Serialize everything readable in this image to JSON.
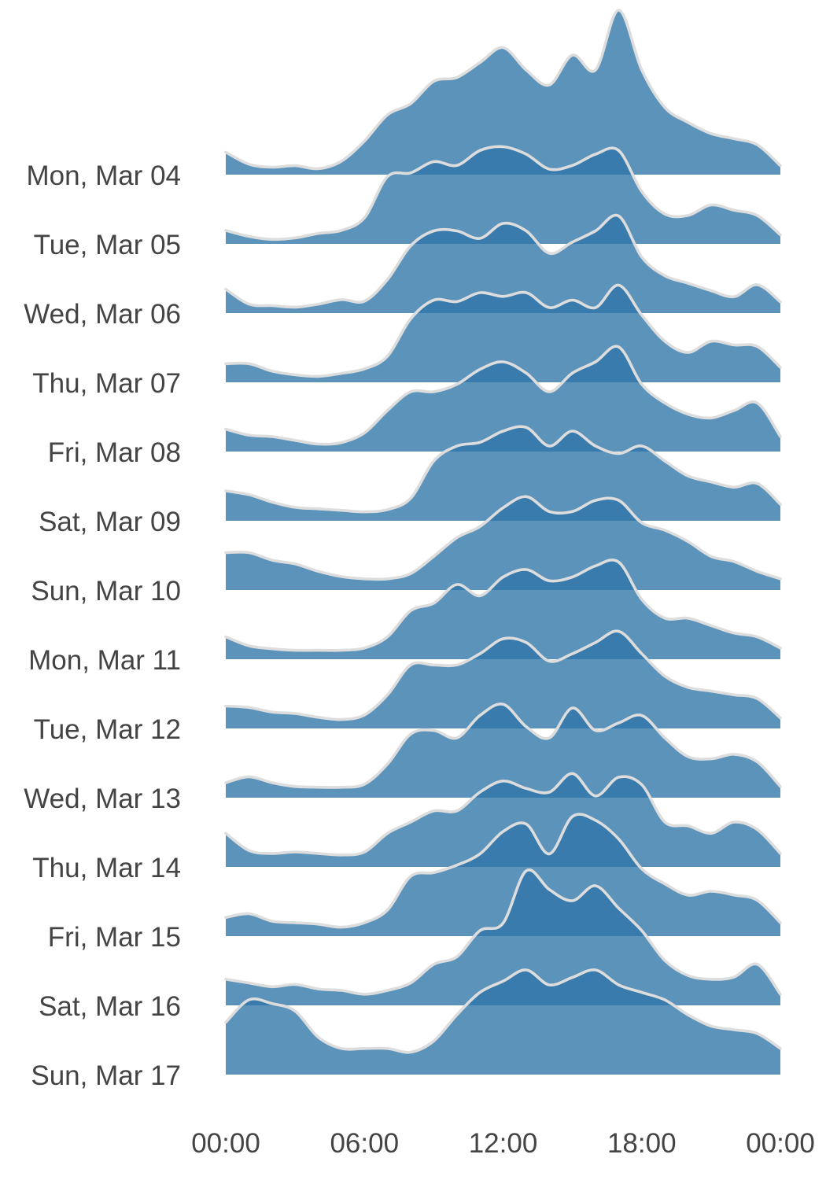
{
  "chart_data": {
    "type": "area",
    "subtype": "ridgeline",
    "title": "",
    "xlabel": "",
    "ylabel": "",
    "x_ticks": [
      "00:00",
      "06:00",
      "12:00",
      "18:00",
      "00:00"
    ],
    "x_tick_hours": [
      0,
      6,
      12,
      18,
      24
    ],
    "xlim": [
      0,
      24
    ],
    "grid": false,
    "legend": "none",
    "colors": {
      "fill": "#2e75a8",
      "fill_opacity": 0.78,
      "line": "#dddddd",
      "label": "#444444",
      "background": "#ffffff"
    },
    "hours": [
      0,
      1,
      2,
      3,
      4,
      5,
      6,
      7,
      8,
      9,
      10,
      11,
      12,
      13,
      14,
      15,
      16,
      17,
      18,
      19,
      20,
      21,
      22,
      23,
      24
    ],
    "series": [
      {
        "label": "Mon, Mar 04",
        "values": [
          0.3,
          0.14,
          0.1,
          0.12,
          0.08,
          0.18,
          0.45,
          0.8,
          0.95,
          1.25,
          1.3,
          1.5,
          1.7,
          1.4,
          1.2,
          1.6,
          1.4,
          2.2,
          1.4,
          0.9,
          0.7,
          0.55,
          0.48,
          0.4,
          0.12
        ]
      },
      {
        "label": "Tue, Mar 05",
        "values": [
          0.18,
          0.1,
          0.06,
          0.08,
          0.14,
          0.18,
          0.35,
          0.9,
          0.95,
          1.1,
          1.05,
          1.25,
          1.3,
          1.2,
          1.0,
          1.05,
          1.2,
          1.25,
          0.7,
          0.4,
          0.38,
          0.52,
          0.45,
          0.38,
          0.12
        ]
      },
      {
        "label": "Wed, Mar 06",
        "values": [
          0.32,
          0.12,
          0.1,
          0.08,
          0.12,
          0.18,
          0.16,
          0.45,
          0.9,
          1.1,
          1.1,
          1.0,
          1.2,
          1.1,
          0.8,
          0.95,
          1.1,
          1.3,
          0.75,
          0.5,
          0.4,
          0.3,
          0.22,
          0.38,
          0.15
        ]
      },
      {
        "label": "Thu, Mar 07",
        "values": [
          0.25,
          0.25,
          0.15,
          0.1,
          0.08,
          0.12,
          0.18,
          0.35,
          0.85,
          1.1,
          1.08,
          1.2,
          1.15,
          1.2,
          1.0,
          1.1,
          1.0,
          1.3,
          0.9,
          0.55,
          0.4,
          0.55,
          0.5,
          0.48,
          0.2
        ]
      },
      {
        "label": "Fri, Mar 08",
        "values": [
          0.3,
          0.22,
          0.2,
          0.15,
          0.1,
          0.12,
          0.25,
          0.55,
          0.8,
          0.8,
          0.9,
          1.1,
          1.2,
          1.05,
          0.8,
          1.05,
          1.2,
          1.4,
          0.9,
          0.65,
          0.5,
          0.45,
          0.55,
          0.65,
          0.2
        ]
      },
      {
        "label": "Sat, Mar 09",
        "values": [
          0.4,
          0.35,
          0.25,
          0.18,
          0.16,
          0.14,
          0.12,
          0.15,
          0.3,
          0.8,
          1.0,
          1.05,
          1.2,
          1.25,
          1.0,
          1.2,
          1.0,
          0.9,
          1.0,
          0.8,
          0.6,
          0.52,
          0.45,
          0.5,
          0.22
        ]
      },
      {
        "label": "Sun, Mar 10",
        "values": [
          0.5,
          0.5,
          0.4,
          0.35,
          0.25,
          0.18,
          0.15,
          0.15,
          0.22,
          0.45,
          0.7,
          0.85,
          1.1,
          1.25,
          1.05,
          1.05,
          1.2,
          1.2,
          0.9,
          0.8,
          0.65,
          0.45,
          0.38,
          0.25,
          0.15
        ]
      },
      {
        "label": "Mon, Mar 11",
        "values": [
          0.3,
          0.18,
          0.14,
          0.12,
          0.12,
          0.12,
          0.15,
          0.3,
          0.65,
          0.75,
          1.0,
          0.85,
          1.1,
          1.2,
          1.05,
          1.1,
          1.25,
          1.3,
          0.8,
          0.55,
          0.55,
          0.45,
          0.35,
          0.3,
          0.15
        ]
      },
      {
        "label": "Tue, Mar 12",
        "values": [
          0.3,
          0.28,
          0.22,
          0.2,
          0.15,
          0.12,
          0.18,
          0.45,
          0.85,
          0.85,
          0.85,
          1.0,
          1.2,
          1.15,
          0.9,
          1.0,
          1.15,
          1.3,
          1.0,
          0.7,
          0.55,
          0.5,
          0.45,
          0.4,
          0.14
        ]
      },
      {
        "label": "Wed, Mar 13",
        "values": [
          0.2,
          0.28,
          0.2,
          0.15,
          0.14,
          0.14,
          0.18,
          0.45,
          0.85,
          0.9,
          0.8,
          1.1,
          1.25,
          0.95,
          0.8,
          1.2,
          0.9,
          1.0,
          1.1,
          0.8,
          0.55,
          0.52,
          0.58,
          0.48,
          0.15
        ]
      },
      {
        "label": "Thu, Mar 14",
        "values": [
          0.45,
          0.22,
          0.18,
          0.2,
          0.18,
          0.16,
          0.2,
          0.45,
          0.6,
          0.75,
          0.75,
          1.0,
          1.15,
          1.05,
          1.0,
          1.25,
          0.95,
          1.2,
          1.1,
          0.6,
          0.55,
          0.45,
          0.6,
          0.5,
          0.18
        ]
      },
      {
        "label": "Fri, Mar 15",
        "values": [
          0.25,
          0.3,
          0.2,
          0.18,
          0.16,
          0.12,
          0.18,
          0.35,
          0.8,
          0.85,
          0.95,
          1.1,
          1.4,
          1.5,
          1.1,
          1.6,
          1.55,
          1.3,
          0.9,
          0.7,
          0.55,
          0.6,
          0.55,
          0.48,
          0.18
        ]
      },
      {
        "label": "Sat, Mar 16",
        "values": [
          0.35,
          0.3,
          0.25,
          0.28,
          0.22,
          0.2,
          0.15,
          0.2,
          0.3,
          0.55,
          0.65,
          1.0,
          1.1,
          1.8,
          1.55,
          1.4,
          1.6,
          1.3,
          1.0,
          0.6,
          0.4,
          0.35,
          0.38,
          0.55,
          0.15
        ]
      },
      {
        "label": "Sun, Mar 17",
        "values": [
          0.7,
          1.0,
          0.95,
          0.85,
          0.5,
          0.35,
          0.35,
          0.35,
          0.3,
          0.45,
          0.8,
          1.1,
          1.25,
          1.4,
          1.2,
          1.3,
          1.4,
          1.2,
          1.1,
          1.0,
          0.8,
          0.65,
          0.6,
          0.55,
          0.35
        ]
      }
    ]
  }
}
